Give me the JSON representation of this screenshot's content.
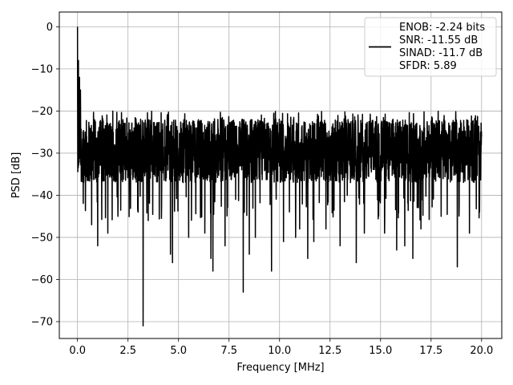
{
  "chart_data": {
    "type": "line",
    "title": "",
    "xlabel": "Frequency [MHz]",
    "ylabel": "PSD [dB]",
    "xlim": [
      -0.9,
      21.0
    ],
    "ylim": [
      -74.0,
      3.5
    ],
    "xticks": [
      0.0,
      2.5,
      5.0,
      7.5,
      10.0,
      12.5,
      15.0,
      17.5,
      20.0
    ],
    "xtick_labels": [
      "0.0",
      "2.5",
      "5.0",
      "7.5",
      "10.0",
      "12.5",
      "15.0",
      "17.5",
      "20.0"
    ],
    "yticks": [
      0,
      -10,
      -20,
      -30,
      -40,
      -50,
      -60,
      -70
    ],
    "ytick_labels": [
      "0",
      "−10",
      "−20",
      "−30",
      "−40",
      "−50",
      "−60",
      "−70"
    ],
    "grid": true,
    "legend_position": "top-right",
    "line_color": "#000000",
    "series": [
      {
        "name_lines": [
          "ENOB: -2.24 bits",
          "SNR: -11.55 dB",
          "SINAD: -11.7 dB",
          "SFDR: 5.89"
        ],
        "x_range": [
          0.0,
          20.0
        ],
        "baseline_db": -29.5,
        "noise_top_db": -20.0,
        "noise_bottom_db": -40.0,
        "peaks": [
          {
            "x": 0.0,
            "y": 0.0
          },
          {
            "x": 0.05,
            "y": -8.0
          },
          {
            "x": 0.1,
            "y": -12.0
          },
          {
            "x": 0.15,
            "y": -15.0
          }
        ],
        "dips": [
          {
            "x": 0.4,
            "y": -36.0
          },
          {
            "x": 0.7,
            "y": -47.0
          },
          {
            "x": 1.0,
            "y": -52.0
          },
          {
            "x": 1.5,
            "y": -49.0
          },
          {
            "x": 2.0,
            "y": -45.0
          },
          {
            "x": 3.0,
            "y": -44.0
          },
          {
            "x": 3.25,
            "y": -71.0
          },
          {
            "x": 3.5,
            "y": -46.0
          },
          {
            "x": 4.6,
            "y": -54.0
          },
          {
            "x": 4.7,
            "y": -56.0
          },
          {
            "x": 5.5,
            "y": -50.0
          },
          {
            "x": 6.3,
            "y": -49.0
          },
          {
            "x": 6.6,
            "y": -55.0
          },
          {
            "x": 6.7,
            "y": -58.0
          },
          {
            "x": 7.3,
            "y": -52.0
          },
          {
            "x": 8.2,
            "y": -63.0
          },
          {
            "x": 8.5,
            "y": -54.0
          },
          {
            "x": 8.8,
            "y": -50.0
          },
          {
            "x": 9.6,
            "y": -58.0
          },
          {
            "x": 10.2,
            "y": -51.0
          },
          {
            "x": 10.8,
            "y": -50.0
          },
          {
            "x": 11.0,
            "y": -48.0
          },
          {
            "x": 11.4,
            "y": -55.0
          },
          {
            "x": 11.7,
            "y": -51.0
          },
          {
            "x": 12.3,
            "y": -48.0
          },
          {
            "x": 13.0,
            "y": -52.0
          },
          {
            "x": 13.8,
            "y": -56.0
          },
          {
            "x": 14.2,
            "y": -49.0
          },
          {
            "x": 15.2,
            "y": -49.0
          },
          {
            "x": 15.8,
            "y": -53.0
          },
          {
            "x": 16.2,
            "y": -52.0
          },
          {
            "x": 16.6,
            "y": -55.0
          },
          {
            "x": 17.0,
            "y": -48.0
          },
          {
            "x": 18.0,
            "y": -45.0
          },
          {
            "x": 18.8,
            "y": -57.0
          },
          {
            "x": 19.4,
            "y": -49.0
          },
          {
            "x": 19.9,
            "y": -44.0
          }
        ]
      }
    ]
  }
}
